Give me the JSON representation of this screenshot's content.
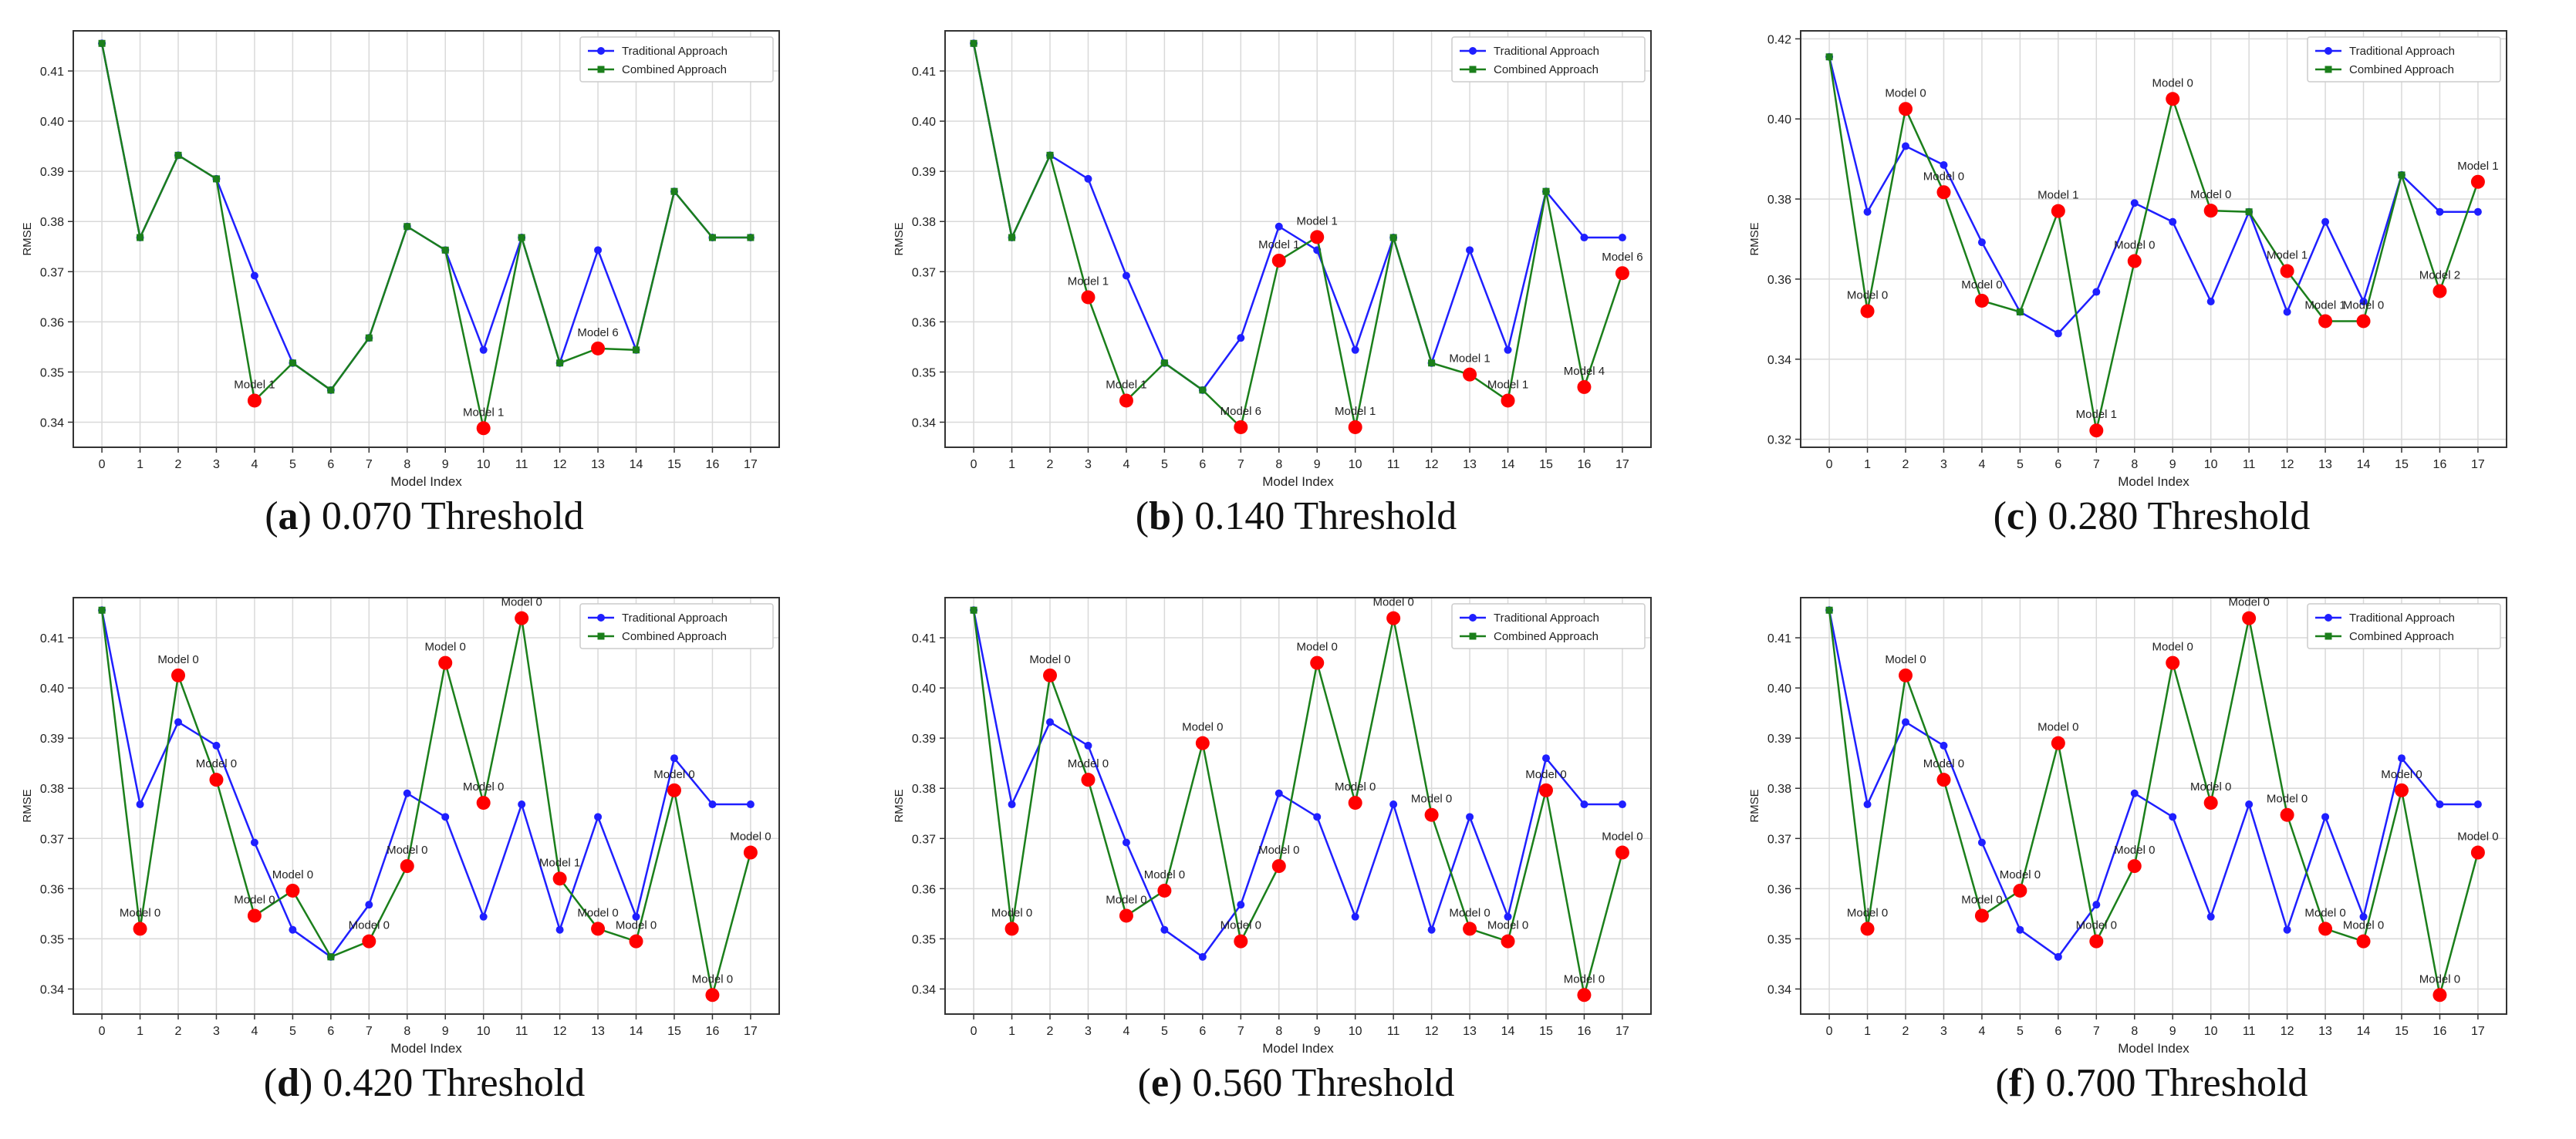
{
  "figure": {
    "caption_lettering_note": "Each panel caption reads '(letter) threshold Threshold'"
  },
  "colors": {
    "traditional": "#1f1fff",
    "combined": "#1b7f1b",
    "highlight": "#ff0000",
    "grid": "#d9d9d9",
    "axis": "#333333"
  },
  "chart_data": [
    {
      "type": "line",
      "panel_letter": "a",
      "caption_text": "0.070 Threshold",
      "xlabel": "Model Index",
      "ylabel": "RMSE",
      "ylim": [
        0.335,
        0.418
      ],
      "yticks": [
        0.34,
        0.35,
        0.36,
        0.37,
        0.38,
        0.39,
        0.4,
        0.41
      ],
      "ytick_labels": [
        "0.34",
        "0.35",
        "0.36",
        "0.37",
        "0.38",
        "0.39",
        "0.40",
        "0.41"
      ],
      "x": [
        0,
        1,
        2,
        3,
        4,
        5,
        6,
        7,
        8,
        9,
        10,
        11,
        12,
        13,
        14,
        15,
        16,
        17
      ],
      "legend_position": "top-right",
      "series": [
        {
          "name": "Traditional Approach",
          "color": "#1f1fff",
          "marker": "circle",
          "values": [
            0.4155,
            0.3768,
            0.3932,
            0.3885,
            0.3692,
            0.3518,
            0.3464,
            0.3568,
            0.379,
            0.3743,
            0.3544,
            0.3768,
            0.3518,
            0.3743,
            0.3544,
            0.386,
            0.3768,
            0.3768
          ]
        },
        {
          "name": "Combined Approach",
          "color": "#1b7f1b",
          "marker": "square",
          "values": [
            0.4155,
            0.3768,
            0.3932,
            0.3885,
            0.3443,
            0.3518,
            0.3464,
            0.3568,
            0.379,
            0.3743,
            0.3388,
            0.3768,
            0.3518,
            0.3547,
            0.3544,
            0.386,
            0.3768,
            0.3768
          ]
        }
      ],
      "highlights": [
        {
          "x": 4,
          "y": 0.3443,
          "label": "Model 1"
        },
        {
          "x": 10,
          "y": 0.3388,
          "label": "Model 1"
        },
        {
          "x": 13,
          "y": 0.3547,
          "label": "Model 6"
        }
      ]
    },
    {
      "type": "line",
      "panel_letter": "b",
      "caption_text": "0.140 Threshold",
      "xlabel": "Model Index",
      "ylabel": "RMSE",
      "ylim": [
        0.335,
        0.418
      ],
      "yticks": [
        0.34,
        0.35,
        0.36,
        0.37,
        0.38,
        0.39,
        0.4,
        0.41
      ],
      "ytick_labels": [
        "0.34",
        "0.35",
        "0.36",
        "0.37",
        "0.38",
        "0.39",
        "0.40",
        "0.41"
      ],
      "x": [
        0,
        1,
        2,
        3,
        4,
        5,
        6,
        7,
        8,
        9,
        10,
        11,
        12,
        13,
        14,
        15,
        16,
        17
      ],
      "legend_position": "top-right",
      "series": [
        {
          "name": "Traditional Approach",
          "color": "#1f1fff",
          "marker": "circle",
          "values": [
            0.4155,
            0.3768,
            0.3932,
            0.3885,
            0.3692,
            0.3518,
            0.3464,
            0.3568,
            0.379,
            0.3743,
            0.3544,
            0.3768,
            0.3518,
            0.3743,
            0.3544,
            0.386,
            0.3768,
            0.3768
          ]
        },
        {
          "name": "Combined Approach",
          "color": "#1b7f1b",
          "marker": "square",
          "values": [
            0.4155,
            0.3768,
            0.3932,
            0.3649,
            0.3443,
            0.3518,
            0.3464,
            0.339,
            0.3722,
            0.3769,
            0.339,
            0.3768,
            0.3518,
            0.3495,
            0.3443,
            0.386,
            0.347,
            0.3697
          ]
        }
      ],
      "highlights": [
        {
          "x": 3,
          "y": 0.3649,
          "label": "Model 1"
        },
        {
          "x": 4,
          "y": 0.3443,
          "label": "Model 1"
        },
        {
          "x": 7,
          "y": 0.339,
          "label": "Model 6"
        },
        {
          "x": 8,
          "y": 0.3722,
          "label": "Model 1"
        },
        {
          "x": 9,
          "y": 0.3769,
          "label": "Model 1"
        },
        {
          "x": 10,
          "y": 0.339,
          "label": "Model 1"
        },
        {
          "x": 13,
          "y": 0.3495,
          "label": "Model 1"
        },
        {
          "x": 14,
          "y": 0.3443,
          "label": "Model 1"
        },
        {
          "x": 16,
          "y": 0.347,
          "label": "Model 4"
        },
        {
          "x": 17,
          "y": 0.3697,
          "label": "Model 6"
        }
      ]
    },
    {
      "type": "line",
      "panel_letter": "c",
      "caption_text": "0.280 Threshold",
      "xlabel": "Model Index",
      "ylabel": "RMSE",
      "ylim": [
        0.318,
        0.422
      ],
      "yticks": [
        0.32,
        0.34,
        0.36,
        0.38,
        0.4,
        0.42
      ],
      "ytick_labels": [
        "0.32",
        "0.34",
        "0.36",
        "0.38",
        "0.40",
        "0.42"
      ],
      "x": [
        0,
        1,
        2,
        3,
        4,
        5,
        6,
        7,
        8,
        9,
        10,
        11,
        12,
        13,
        14,
        15,
        16,
        17
      ],
      "legend_position": "top-right",
      "series": [
        {
          "name": "Traditional Approach",
          "color": "#1f1fff",
          "marker": "circle",
          "values": [
            0.4155,
            0.3768,
            0.3932,
            0.3885,
            0.3692,
            0.3518,
            0.3464,
            0.3568,
            0.379,
            0.3743,
            0.3544,
            0.3768,
            0.3518,
            0.3743,
            0.3544,
            0.386,
            0.3768,
            0.3768
          ]
        },
        {
          "name": "Combined Approach",
          "color": "#1b7f1b",
          "marker": "square",
          "values": [
            0.4155,
            0.352,
            0.4025,
            0.3817,
            0.3546,
            0.3518,
            0.377,
            0.3222,
            0.3645,
            0.405,
            0.3771,
            0.3768,
            0.362,
            0.3495,
            0.3495,
            0.386,
            0.357,
            0.3843
          ]
        }
      ],
      "highlights": [
        {
          "x": 1,
          "y": 0.352,
          "label": "Model 0"
        },
        {
          "x": 2,
          "y": 0.4025,
          "label": "Model 0"
        },
        {
          "x": 3,
          "y": 0.3817,
          "label": "Model 0"
        },
        {
          "x": 4,
          "y": 0.3546,
          "label": "Model 0"
        },
        {
          "x": 6,
          "y": 0.377,
          "label": "Model 1"
        },
        {
          "x": 7,
          "y": 0.3222,
          "label": "Model 1"
        },
        {
          "x": 8,
          "y": 0.3645,
          "label": "Model 0"
        },
        {
          "x": 9,
          "y": 0.405,
          "label": "Model 0"
        },
        {
          "x": 10,
          "y": 0.3771,
          "label": "Model 0"
        },
        {
          "x": 12,
          "y": 0.362,
          "label": "Model 1"
        },
        {
          "x": 13,
          "y": 0.3495,
          "label": "Model 1"
        },
        {
          "x": 14,
          "y": 0.3495,
          "label": "Model 0"
        },
        {
          "x": 16,
          "y": 0.357,
          "label": "Model 2"
        },
        {
          "x": 17,
          "y": 0.3843,
          "label": "Model 1"
        }
      ]
    },
    {
      "type": "line",
      "panel_letter": "d",
      "caption_text": "0.420 Threshold",
      "xlabel": "Model Index",
      "ylabel": "RMSE",
      "ylim": [
        0.335,
        0.418
      ],
      "yticks": [
        0.34,
        0.35,
        0.36,
        0.37,
        0.38,
        0.39,
        0.4,
        0.41
      ],
      "ytick_labels": [
        "0.34",
        "0.35",
        "0.36",
        "0.37",
        "0.38",
        "0.39",
        "0.40",
        "0.41"
      ],
      "x": [
        0,
        1,
        2,
        3,
        4,
        5,
        6,
        7,
        8,
        9,
        10,
        11,
        12,
        13,
        14,
        15,
        16,
        17
      ],
      "legend_position": "top-right",
      "series": [
        {
          "name": "Traditional Approach",
          "color": "#1f1fff",
          "marker": "circle",
          "values": [
            0.4155,
            0.3768,
            0.3932,
            0.3885,
            0.3692,
            0.3518,
            0.3464,
            0.3568,
            0.379,
            0.3743,
            0.3544,
            0.3768,
            0.3518,
            0.3743,
            0.3544,
            0.386,
            0.3768,
            0.3768
          ]
        },
        {
          "name": "Combined Approach",
          "color": "#1b7f1b",
          "marker": "square",
          "values": [
            0.4155,
            0.352,
            0.4025,
            0.3817,
            0.3546,
            0.3596,
            0.3464,
            0.3495,
            0.3645,
            0.405,
            0.3771,
            0.4139,
            0.362,
            0.352,
            0.3495,
            0.3796,
            0.3388,
            0.3672
          ]
        }
      ],
      "highlights": [
        {
          "x": 1,
          "y": 0.352,
          "label": "Model 0"
        },
        {
          "x": 2,
          "y": 0.4025,
          "label": "Model 0"
        },
        {
          "x": 3,
          "y": 0.3817,
          "label": "Model 0"
        },
        {
          "x": 4,
          "y": 0.3546,
          "label": "Model 0"
        },
        {
          "x": 5,
          "y": 0.3596,
          "label": "Model 0"
        },
        {
          "x": 7,
          "y": 0.3495,
          "label": "Model 0"
        },
        {
          "x": 8,
          "y": 0.3645,
          "label": "Model 0"
        },
        {
          "x": 9,
          "y": 0.405,
          "label": "Model 0"
        },
        {
          "x": 10,
          "y": 0.3771,
          "label": "Model 0"
        },
        {
          "x": 11,
          "y": 0.4139,
          "label": "Model 0"
        },
        {
          "x": 12,
          "y": 0.362,
          "label": "Model 1"
        },
        {
          "x": 13,
          "y": 0.352,
          "label": "Model 0"
        },
        {
          "x": 14,
          "y": 0.3495,
          "label": "Model 0"
        },
        {
          "x": 15,
          "y": 0.3796,
          "label": "Model 0"
        },
        {
          "x": 16,
          "y": 0.3388,
          "label": "Model 0"
        },
        {
          "x": 17,
          "y": 0.3672,
          "label": "Model 0"
        }
      ]
    },
    {
      "type": "line",
      "panel_letter": "e",
      "caption_text": "0.560 Threshold",
      "xlabel": "Model Index",
      "ylabel": "RMSE",
      "ylim": [
        0.335,
        0.418
      ],
      "yticks": [
        0.34,
        0.35,
        0.36,
        0.37,
        0.38,
        0.39,
        0.4,
        0.41
      ],
      "ytick_labels": [
        "0.34",
        "0.35",
        "0.36",
        "0.37",
        "0.38",
        "0.39",
        "0.40",
        "0.41"
      ],
      "x": [
        0,
        1,
        2,
        3,
        4,
        5,
        6,
        7,
        8,
        9,
        10,
        11,
        12,
        13,
        14,
        15,
        16,
        17
      ],
      "legend_position": "top-right",
      "series": [
        {
          "name": "Traditional Approach",
          "color": "#1f1fff",
          "marker": "circle",
          "values": [
            0.4155,
            0.3768,
            0.3932,
            0.3885,
            0.3692,
            0.3518,
            0.3464,
            0.3568,
            0.379,
            0.3743,
            0.3544,
            0.3768,
            0.3518,
            0.3743,
            0.3544,
            0.386,
            0.3768,
            0.3768
          ]
        },
        {
          "name": "Combined Approach",
          "color": "#1b7f1b",
          "marker": "square",
          "values": [
            0.4155,
            0.352,
            0.4025,
            0.3817,
            0.3546,
            0.3596,
            0.389,
            0.3495,
            0.3645,
            0.405,
            0.3771,
            0.4139,
            0.3747,
            0.352,
            0.3495,
            0.3796,
            0.3388,
            0.3672
          ]
        }
      ],
      "highlights": [
        {
          "x": 1,
          "y": 0.352,
          "label": "Model 0"
        },
        {
          "x": 2,
          "y": 0.4025,
          "label": "Model 0"
        },
        {
          "x": 3,
          "y": 0.3817,
          "label": "Model 0"
        },
        {
          "x": 4,
          "y": 0.3546,
          "label": "Model 0"
        },
        {
          "x": 5,
          "y": 0.3596,
          "label": "Model 0"
        },
        {
          "x": 6,
          "y": 0.389,
          "label": "Model 0"
        },
        {
          "x": 7,
          "y": 0.3495,
          "label": "Model 0"
        },
        {
          "x": 8,
          "y": 0.3645,
          "label": "Model 0"
        },
        {
          "x": 9,
          "y": 0.405,
          "label": "Model 0"
        },
        {
          "x": 10,
          "y": 0.3771,
          "label": "Model 0"
        },
        {
          "x": 11,
          "y": 0.4139,
          "label": "Model 0"
        },
        {
          "x": 12,
          "y": 0.3747,
          "label": "Model 0"
        },
        {
          "x": 13,
          "y": 0.352,
          "label": "Model 0"
        },
        {
          "x": 14,
          "y": 0.3495,
          "label": "Model 0"
        },
        {
          "x": 15,
          "y": 0.3796,
          "label": "Model 0"
        },
        {
          "x": 16,
          "y": 0.3388,
          "label": "Model 0"
        },
        {
          "x": 17,
          "y": 0.3672,
          "label": "Model 0"
        }
      ]
    },
    {
      "type": "line",
      "panel_letter": "f",
      "caption_text": "0.700 Threshold",
      "xlabel": "Model Index",
      "ylabel": "RMSE",
      "ylim": [
        0.335,
        0.418
      ],
      "yticks": [
        0.34,
        0.35,
        0.36,
        0.37,
        0.38,
        0.39,
        0.4,
        0.41
      ],
      "ytick_labels": [
        "0.34",
        "0.35",
        "0.36",
        "0.37",
        "0.38",
        "0.39",
        "0.40",
        "0.41"
      ],
      "x": [
        0,
        1,
        2,
        3,
        4,
        5,
        6,
        7,
        8,
        9,
        10,
        11,
        12,
        13,
        14,
        15,
        16,
        17
      ],
      "legend_position": "top-right",
      "series": [
        {
          "name": "Traditional Approach",
          "color": "#1f1fff",
          "marker": "circle",
          "values": [
            0.4155,
            0.3768,
            0.3932,
            0.3885,
            0.3692,
            0.3518,
            0.3464,
            0.3568,
            0.379,
            0.3743,
            0.3544,
            0.3768,
            0.3518,
            0.3743,
            0.3544,
            0.386,
            0.3768,
            0.3768
          ]
        },
        {
          "name": "Combined Approach",
          "color": "#1b7f1b",
          "marker": "square",
          "values": [
            0.4155,
            0.352,
            0.4025,
            0.3817,
            0.3546,
            0.3596,
            0.389,
            0.3495,
            0.3645,
            0.405,
            0.3771,
            0.4139,
            0.3747,
            0.352,
            0.3495,
            0.3796,
            0.3388,
            0.3672
          ]
        }
      ],
      "highlights": [
        {
          "x": 1,
          "y": 0.352,
          "label": "Model 0"
        },
        {
          "x": 2,
          "y": 0.4025,
          "label": "Model 0"
        },
        {
          "x": 3,
          "y": 0.3817,
          "label": "Model 0"
        },
        {
          "x": 4,
          "y": 0.3546,
          "label": "Model 0"
        },
        {
          "x": 5,
          "y": 0.3596,
          "label": "Model 0"
        },
        {
          "x": 6,
          "y": 0.389,
          "label": "Model 0"
        },
        {
          "x": 7,
          "y": 0.3495,
          "label": "Model 0"
        },
        {
          "x": 8,
          "y": 0.3645,
          "label": "Model 0"
        },
        {
          "x": 9,
          "y": 0.405,
          "label": "Model 0"
        },
        {
          "x": 10,
          "y": 0.3771,
          "label": "Model 0"
        },
        {
          "x": 11,
          "y": 0.4139,
          "label": "Model 0"
        },
        {
          "x": 12,
          "y": 0.3747,
          "label": "Model 0"
        },
        {
          "x": 13,
          "y": 0.352,
          "label": "Model 0"
        },
        {
          "x": 14,
          "y": 0.3495,
          "label": "Model 0"
        },
        {
          "x": 15,
          "y": 0.3796,
          "label": "Model 0"
        },
        {
          "x": 16,
          "y": 0.3388,
          "label": "Model 0"
        },
        {
          "x": 17,
          "y": 0.3672,
          "label": "Model 0"
        }
      ]
    }
  ]
}
